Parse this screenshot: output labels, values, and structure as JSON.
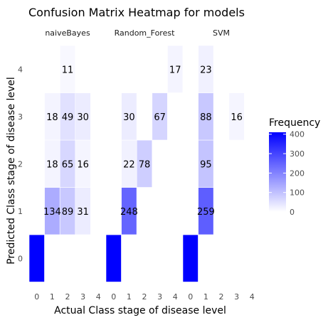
{
  "chart_data": {
    "type": "heatmap",
    "title": "Confusion Matrix Heatmap for models",
    "xlabel": "Actual Class stage of disease level",
    "ylabel": "Predicted Class stage of disease level",
    "x_categories": [
      "0",
      "1",
      "2",
      "3",
      "4"
    ],
    "y_categories": [
      "0",
      "1",
      "2",
      "3",
      "4"
    ],
    "legend": {
      "title": "Frequency",
      "ticks": [
        0,
        100,
        200,
        300,
        400
      ],
      "range": [
        0,
        410
      ],
      "position": "right",
      "low_color": "#ffffff",
      "high_color": "#0000ff"
    },
    "facets": [
      {
        "name": "naiveBayes",
        "matrix": [
          [
            410,
            0,
            0,
            0,
            0
          ],
          [
            0,
            134,
            89,
            31,
            0
          ],
          [
            0,
            18,
            65,
            16,
            0
          ],
          [
            0,
            18,
            49,
            30,
            0
          ],
          [
            0,
            0,
            11,
            0,
            0
          ]
        ],
        "labels": [
          [
            null,
            null,
            null,
            null,
            null
          ],
          [
            null,
            "134",
            "89",
            "31",
            null
          ],
          [
            null,
            "18",
            "65",
            "16",
            null
          ],
          [
            null,
            "18",
            "49",
            "30",
            null
          ],
          [
            null,
            null,
            "11",
            null,
            null
          ]
        ]
      },
      {
        "name": "Random_Forest",
        "matrix": [
          [
            410,
            0,
            0,
            0,
            0
          ],
          [
            0,
            248,
            0,
            0,
            0
          ],
          [
            0,
            22,
            78,
            0,
            0
          ],
          [
            0,
            30,
            0,
            67,
            0
          ],
          [
            0,
            0,
            0,
            0,
            17
          ]
        ],
        "labels": [
          [
            null,
            null,
            null,
            null,
            null
          ],
          [
            null,
            "248",
            null,
            null,
            null
          ],
          [
            null,
            "22",
            "78",
            null,
            null
          ],
          [
            null,
            "30",
            null,
            "67",
            null
          ],
          [
            null,
            null,
            null,
            null,
            "17"
          ]
        ]
      },
      {
        "name": "SVM",
        "matrix": [
          [
            410,
            0,
            0,
            0,
            0
          ],
          [
            0,
            259,
            0,
            0,
            0
          ],
          [
            0,
            95,
            0,
            0,
            0
          ],
          [
            0,
            88,
            0,
            16,
            0
          ],
          [
            0,
            23,
            0,
            0,
            0
          ]
        ],
        "labels": [
          [
            null,
            null,
            null,
            null,
            null
          ],
          [
            null,
            "259",
            null,
            null,
            null
          ],
          [
            null,
            "95",
            null,
            null,
            null
          ],
          [
            null,
            "88",
            null,
            "16",
            null
          ],
          [
            null,
            "23",
            null,
            null,
            null
          ]
        ]
      }
    ]
  }
}
